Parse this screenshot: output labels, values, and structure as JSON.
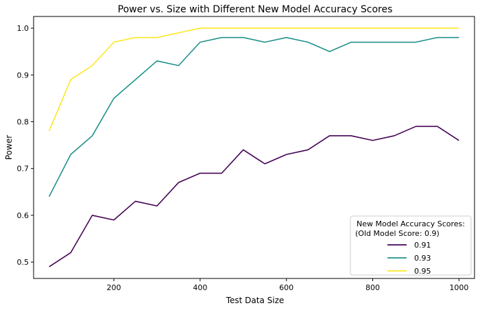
{
  "chart_data": {
    "type": "line",
    "title": "Power vs. Size with Different New Model Accuracy Scores",
    "xlabel": "Test Data Size",
    "ylabel": "Power",
    "xlim": [
      14,
      1036
    ],
    "ylim": [
      0.465,
      1.025
    ],
    "xticks": [
      200,
      400,
      600,
      800,
      1000
    ],
    "yticks": [
      0.5,
      0.6,
      0.7,
      0.8,
      0.9,
      1.0
    ],
    "xtick_labels": [
      "200",
      "400",
      "600",
      "800",
      "1000"
    ],
    "ytick_labels": [
      "0.5",
      "0.6",
      "0.7",
      "0.8",
      "0.9",
      "1.0"
    ],
    "grid": false,
    "legend": {
      "placement": "lower-right",
      "title_lines": [
        "New Model Accuracy Scores:",
        "(Old Model Score: 0.9)"
      ]
    },
    "x": [
      50,
      100,
      150,
      200,
      250,
      300,
      350,
      400,
      450,
      500,
      550,
      600,
      650,
      700,
      750,
      800,
      850,
      900,
      950,
      1000
    ],
    "series": [
      {
        "name": "0.91",
        "color": "#440154",
        "values": [
          0.49,
          0.52,
          0.6,
          0.59,
          0.63,
          0.62,
          0.67,
          0.69,
          0.69,
          0.74,
          0.71,
          0.73,
          0.74,
          0.77,
          0.77,
          0.76,
          0.77,
          0.79,
          0.79,
          0.76
        ]
      },
      {
        "name": "0.93",
        "color": "#21918c",
        "values": [
          0.64,
          0.73,
          0.77,
          0.85,
          0.89,
          0.93,
          0.92,
          0.97,
          0.98,
          0.98,
          0.97,
          0.98,
          0.97,
          0.95,
          0.97,
          0.97,
          0.97,
          0.97,
          0.98,
          0.98
        ]
      },
      {
        "name": "0.95",
        "color": "#fde725",
        "values": [
          0.78,
          0.89,
          0.92,
          0.97,
          0.98,
          0.98,
          0.99,
          1.0,
          1.0,
          1.0,
          1.0,
          1.0,
          1.0,
          1.0,
          1.0,
          1.0,
          1.0,
          1.0,
          1.0,
          1.0
        ]
      }
    ]
  }
}
